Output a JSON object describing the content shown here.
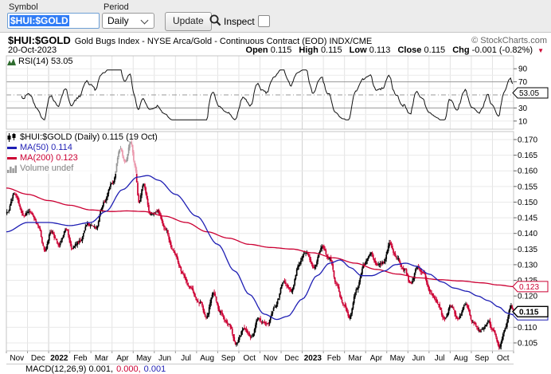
{
  "toolbar": {
    "symbol_label": "Symbol",
    "symbol_value": "$HUI:$GOLD",
    "period_label": "Period",
    "period_value": "Daily",
    "update_label": "Update",
    "inspect_label": "Inspect"
  },
  "header": {
    "symbol": "$HUI:$GOLD",
    "description": "Gold Bugs Index - NYSE Arca/Gold - Continuous Contract (EOD) INDX/CME",
    "copyright": "© StockCharts.com",
    "date": "20-Oct-2023",
    "ohlc": {
      "open_label": "Open",
      "open": "0.115",
      "high_label": "High",
      "high": "0.115",
      "low_label": "Low",
      "low": "0.113",
      "close_label": "Close",
      "close": "0.115",
      "chg_label": "Chg",
      "chg": "-0.001 (-0.82%)"
    }
  },
  "rsi": {
    "legend": "RSI(14) 53.05"
  },
  "legend": {
    "series": "$HUI:$GOLD (Daily) 0.115 (19 Oct)",
    "ma50": "MA(50) 0.114",
    "ma200": "MA(200) 0.123",
    "volume": "Volume undef"
  },
  "footer": {
    "macd": "MACD(12,26,9) 0.001,",
    "macd2": "0.000,",
    "macd3": "0.001"
  },
  "chart_data": {
    "type": "candlestick",
    "title": "$HUI:$GOLD (Daily)",
    "last_close": 0.115,
    "x_axis": {
      "months": [
        {
          "label": "Nov"
        },
        {
          "label": "Dec"
        },
        {
          "label": "2022",
          "bold": true
        },
        {
          "label": "Feb"
        },
        {
          "label": "Mar"
        },
        {
          "label": "Apr"
        },
        {
          "label": "May"
        },
        {
          "label": "Jun"
        },
        {
          "label": "Jul"
        },
        {
          "label": "Aug"
        },
        {
          "label": "Sep"
        },
        {
          "label": "Oct"
        },
        {
          "label": "Nov"
        },
        {
          "label": "Dec"
        },
        {
          "label": "2023",
          "bold": true
        },
        {
          "label": "Feb"
        },
        {
          "label": "Mar"
        },
        {
          "label": "Apr"
        },
        {
          "label": "May"
        },
        {
          "label": "Jun"
        },
        {
          "label": "Jul"
        },
        {
          "label": "Aug"
        },
        {
          "label": "Sep"
        },
        {
          "label": "Oct"
        }
      ]
    },
    "y_axis_main": {
      "ticks": [
        "0.170",
        "0.165",
        "0.160",
        "0.155",
        "0.150",
        "0.145",
        "0.140",
        "0.135",
        "0.130",
        "0.125",
        "0.120",
        "0.115",
        "0.110",
        "0.105"
      ],
      "callouts": [
        {
          "value": 0.114,
          "label": "0.114",
          "color": "#1f1fb4",
          "bold": false
        },
        {
          "value": 0.115,
          "label": "0.115",
          "color": "#000000",
          "bold": true
        },
        {
          "value": 0.123,
          "label": "0.123",
          "color": "#cc0033",
          "bold": false
        }
      ]
    },
    "rsi_panel": {
      "ticks": [
        90,
        70,
        30,
        10
      ],
      "overbought": 70,
      "oversold": 30,
      "mid": 50,
      "last": 53.05,
      "callout_label": "53.05"
    },
    "price_anchors": [
      [
        0,
        0.1465
      ],
      [
        0.35,
        0.1525
      ],
      [
        0.8,
        0.1455
      ],
      [
        1.1,
        0.1475
      ],
      [
        1.45,
        0.1425
      ],
      [
        1.8,
        0.1345
      ],
      [
        2.1,
        0.1405
      ],
      [
        2.45,
        0.1365
      ],
      [
        2.8,
        0.1415
      ],
      [
        3.1,
        0.1355
      ],
      [
        3.45,
        0.1375
      ],
      [
        3.8,
        0.1435
      ],
      [
        4.2,
        0.1415
      ],
      [
        4.6,
        0.1495
      ],
      [
        5.0,
        0.1565
      ],
      [
        5.35,
        0.1675
      ],
      [
        5.6,
        0.1625
      ],
      [
        5.85,
        0.1695
      ],
      [
        6.05,
        0.1615
      ],
      [
        6.25,
        0.1495
      ],
      [
        6.45,
        0.1555
      ],
      [
        6.8,
        0.1465
      ],
      [
        7.15,
        0.1475
      ],
      [
        7.5,
        0.1415
      ],
      [
        7.9,
        0.1335
      ],
      [
        8.3,
        0.1275
      ],
      [
        8.7,
        0.1225
      ],
      [
        9.1,
        0.1185
      ],
      [
        9.45,
        0.1135
      ],
      [
        9.75,
        0.1205
      ],
      [
        10.1,
        0.1145
      ],
      [
        10.5,
        0.1105
      ],
      [
        10.85,
        0.1045
      ],
      [
        11.2,
        0.1095
      ],
      [
        11.55,
        0.1065
      ],
      [
        11.9,
        0.1125
      ],
      [
        12.3,
        0.1105
      ],
      [
        12.7,
        0.1165
      ],
      [
        13.1,
        0.1245
      ],
      [
        13.45,
        0.1215
      ],
      [
        13.8,
        0.1295
      ],
      [
        14.15,
        0.1335
      ],
      [
        14.5,
        0.1285
      ],
      [
        14.9,
        0.1355
      ],
      [
        15.25,
        0.1315
      ],
      [
        15.6,
        0.1225
      ],
      [
        15.95,
        0.1165
      ],
      [
        16.2,
        0.1135
      ],
      [
        16.55,
        0.1215
      ],
      [
        16.9,
        0.1295
      ],
      [
        17.2,
        0.1335
      ],
      [
        17.5,
        0.1295
      ],
      [
        17.8,
        0.1305
      ],
      [
        18.1,
        0.1365
      ],
      [
        18.45,
        0.1325
      ],
      [
        18.8,
        0.1285
      ],
      [
        19.1,
        0.1235
      ],
      [
        19.4,
        0.1285
      ],
      [
        19.7,
        0.1265
      ],
      [
        20.0,
        0.1215
      ],
      [
        20.35,
        0.1185
      ],
      [
        20.7,
        0.1125
      ],
      [
        21.0,
        0.1165
      ],
      [
        21.35,
        0.1125
      ],
      [
        21.7,
        0.1175
      ],
      [
        22.05,
        0.1125
      ],
      [
        22.4,
        0.1085
      ],
      [
        22.75,
        0.1115
      ],
      [
        23.05,
        0.1085
      ],
      [
        23.3,
        0.1045
      ],
      [
        23.6,
        0.1105
      ],
      [
        23.85,
        0.1165
      ],
      [
        24,
        0.115
      ]
    ],
    "ma50_anchors": [
      [
        0,
        0.1405
      ],
      [
        1,
        0.1435
      ],
      [
        2,
        0.1435
      ],
      [
        3,
        0.1425
      ],
      [
        4,
        0.1435
      ],
      [
        4.7,
        0.147
      ],
      [
        5.5,
        0.154
      ],
      [
        6.2,
        0.158
      ],
      [
        6.7,
        0.1585
      ],
      [
        7.2,
        0.157
      ],
      [
        8,
        0.1525
      ],
      [
        9,
        0.1455
      ],
      [
        10,
        0.1365
      ],
      [
        10.8,
        0.128
      ],
      [
        11.5,
        0.1205
      ],
      [
        12.2,
        0.1142
      ],
      [
        12.8,
        0.1125
      ],
      [
        13.3,
        0.1135
      ],
      [
        14,
        0.119
      ],
      [
        14.7,
        0.1265
      ],
      [
        15.3,
        0.1305
      ],
      [
        15.8,
        0.1315
      ],
      [
        16.3,
        0.129
      ],
      [
        16.8,
        0.1265
      ],
      [
        17.3,
        0.1265
      ],
      [
        17.9,
        0.128
      ],
      [
        18.4,
        0.13
      ],
      [
        18.9,
        0.1305
      ],
      [
        19.4,
        0.1295
      ],
      [
        20,
        0.127
      ],
      [
        20.6,
        0.1245
      ],
      [
        21.2,
        0.1225
      ],
      [
        21.8,
        0.1215
      ],
      [
        22.3,
        0.12
      ],
      [
        22.8,
        0.1185
      ],
      [
        23.3,
        0.1165
      ],
      [
        23.7,
        0.1145
      ],
      [
        24,
        0.114
      ]
    ],
    "ma200_anchors": [
      [
        0,
        0.1545
      ],
      [
        1,
        0.1525
      ],
      [
        2,
        0.1505
      ],
      [
        3,
        0.149
      ],
      [
        4,
        0.1475
      ],
      [
        5,
        0.147
      ],
      [
        5.7,
        0.1472
      ],
      [
        6.5,
        0.147
      ],
      [
        7.5,
        0.1455
      ],
      [
        8.5,
        0.1435
      ],
      [
        9.5,
        0.1405
      ],
      [
        10.5,
        0.1385
      ],
      [
        11.5,
        0.1365
      ],
      [
        12.5,
        0.1355
      ],
      [
        13.5,
        0.135
      ],
      [
        14.5,
        0.1338
      ],
      [
        15.5,
        0.1322
      ],
      [
        16.5,
        0.1305
      ],
      [
        17.5,
        0.1285
      ],
      [
        18.5,
        0.127
      ],
      [
        19.5,
        0.1258
      ],
      [
        20.5,
        0.1252
      ],
      [
        21.5,
        0.1248
      ],
      [
        22.5,
        0.1242
      ],
      [
        23.3,
        0.1235
      ],
      [
        24,
        0.123
      ]
    ],
    "colors": {
      "up": "#000000",
      "down": "#cc0033",
      "ma50": "#1f1fb4",
      "ma200": "#cc0033",
      "rsi": "#111111",
      "grid": "#e3e3e3"
    }
  }
}
